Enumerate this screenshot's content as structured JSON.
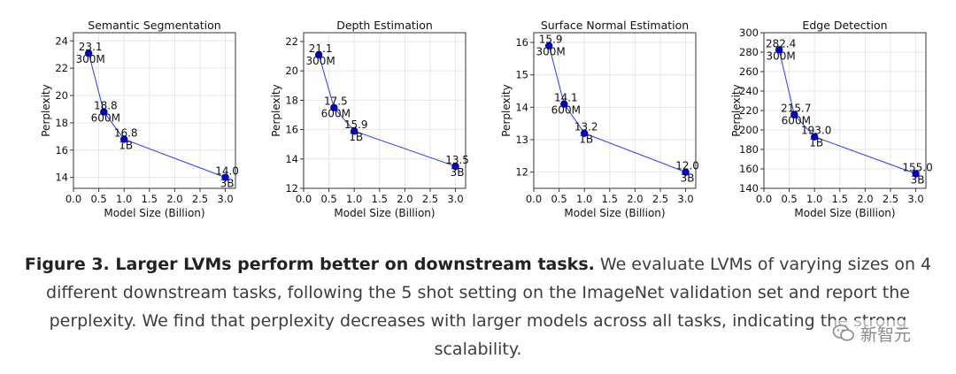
{
  "colors": {
    "series": "#1f3fff",
    "marker": "#0000cc",
    "grid": "#e6e6e6",
    "axis": "#333333"
  },
  "chart_data": [
    {
      "type": "line",
      "title": "Semantic Segmentation",
      "xlabel": "Model Size (Billion)",
      "ylabel": "Perplexity",
      "xlim": [
        0.0,
        3.2
      ],
      "ylim": [
        13.2,
        24.6
      ],
      "xticks": [
        0.0,
        0.5,
        1.0,
        1.5,
        2.0,
        2.5,
        3.0
      ],
      "xtick_labels": [
        "0.0",
        "0.5",
        "1.0",
        "1.5",
        "2.0",
        "2.5",
        "3.0"
      ],
      "yticks": [
        14,
        16,
        18,
        20,
        22,
        24
      ],
      "ytick_labels": [
        "14",
        "16",
        "18",
        "20",
        "22",
        "24"
      ],
      "x": [
        0.3,
        0.6,
        1.0,
        3.0
      ],
      "y": [
        23.1,
        18.8,
        16.8,
        14.0
      ],
      "value_labels": [
        "23.1",
        "18.8",
        "16.8",
        "14.0"
      ],
      "size_labels": [
        "300M",
        "600M",
        "1B",
        "3B"
      ]
    },
    {
      "type": "line",
      "title": "Depth Estimation",
      "xlabel": "Model Size (Billion)",
      "ylabel": "Perplexity",
      "xlim": [
        0.0,
        3.2
      ],
      "ylim": [
        12.0,
        22.6
      ],
      "xticks": [
        0.0,
        0.5,
        1.0,
        1.5,
        2.0,
        2.5,
        3.0
      ],
      "xtick_labels": [
        "0.0",
        "0.5",
        "1.0",
        "1.5",
        "2.0",
        "2.5",
        "3.0"
      ],
      "yticks": [
        12,
        14,
        16,
        18,
        20,
        22
      ],
      "ytick_labels": [
        "12",
        "14",
        "16",
        "18",
        "20",
        "22"
      ],
      "x": [
        0.3,
        0.6,
        1.0,
        3.0
      ],
      "y": [
        21.1,
        17.5,
        15.9,
        13.5
      ],
      "value_labels": [
        "21.1",
        "17.5",
        "15.9",
        "13.5"
      ],
      "size_labels": [
        "300M",
        "600M",
        "1B",
        "3B"
      ]
    },
    {
      "type": "line",
      "title": "Surface Normal Estimation",
      "xlabel": "Model Size (Billion)",
      "ylabel": "Perplexity",
      "xlim": [
        0.0,
        3.2
      ],
      "ylim": [
        11.5,
        16.3
      ],
      "xticks": [
        0.0,
        0.5,
        1.0,
        1.5,
        2.0,
        2.5,
        3.0
      ],
      "xtick_labels": [
        "0.0",
        "0.5",
        "1.0",
        "1.5",
        "2.0",
        "2.5",
        "3.0"
      ],
      "yticks": [
        12,
        13,
        14,
        15,
        16
      ],
      "ytick_labels": [
        "12",
        "13",
        "14",
        "15",
        "16"
      ],
      "x": [
        0.3,
        0.6,
        1.0,
        3.0
      ],
      "y": [
        15.9,
        14.1,
        13.2,
        12.0
      ],
      "value_labels": [
        "15.9",
        "14.1",
        "13.2",
        "12.0"
      ],
      "size_labels": [
        "300M",
        "600M",
        "1B",
        "3B"
      ]
    },
    {
      "type": "line",
      "title": "Edge Detection",
      "xlabel": "Model Size (Billion)",
      "ylabel": "Perplexity",
      "xlim": [
        0.0,
        3.2
      ],
      "ylim": [
        140,
        300
      ],
      "xticks": [
        0.0,
        0.5,
        1.0,
        1.5,
        2.0,
        2.5,
        3.0
      ],
      "xtick_labels": [
        "0.0",
        "0.5",
        "1.0",
        "1.5",
        "2.0",
        "2.5",
        "3.0"
      ],
      "yticks": [
        140,
        160,
        180,
        200,
        220,
        240,
        260,
        280,
        300
      ],
      "ytick_labels": [
        "140",
        "160",
        "180",
        "200",
        "220",
        "240",
        "260",
        "280",
        "300"
      ],
      "x": [
        0.3,
        0.6,
        1.0,
        3.0
      ],
      "y": [
        282.4,
        215.7,
        193.0,
        155.0
      ],
      "value_labels": [
        "282.4",
        "215.7",
        "193.0",
        "155.0"
      ],
      "size_labels": [
        "300M",
        "600M",
        "1B",
        "3B"
      ]
    }
  ],
  "caption": {
    "lead": "Figure 3. Larger LVMs perform better on downstream tasks.",
    "body": "We evaluate LVMs of varying sizes on 4 different downstream tasks, following the 5 shot setting on the ImageNet validation set and report the perplexity. We find that perplexity decreases with larger models across all tasks, indicating the strong scalability."
  },
  "watermark": {
    "text": "新智元",
    "icon": "wechat-icon"
  }
}
